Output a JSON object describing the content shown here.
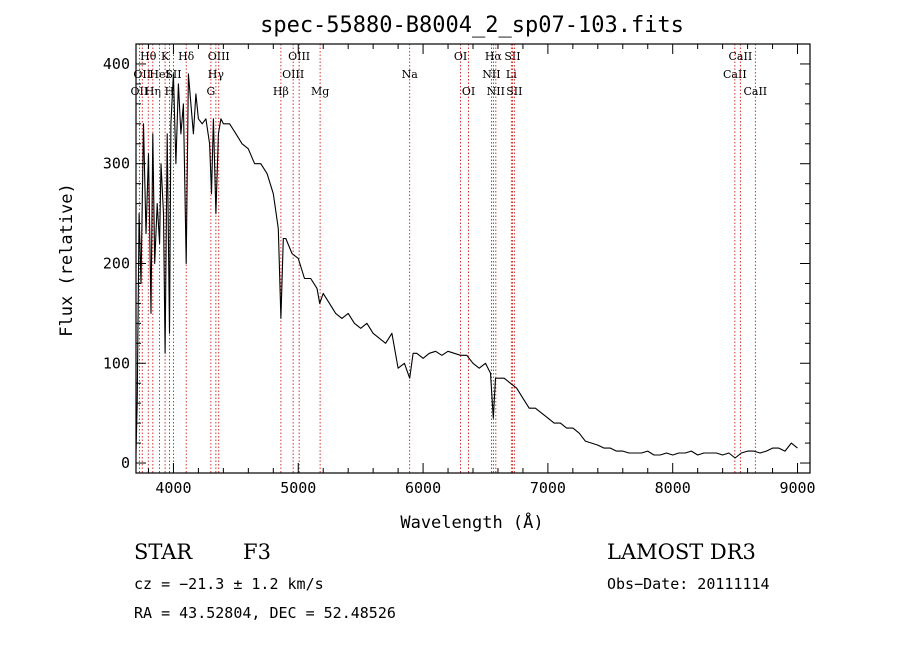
{
  "chart_data": {
    "type": "line",
    "title": "spec-55880-B8004_2_sp07-103.fits",
    "xlabel": "Wavelength (Å)",
    "ylabel": "Flux (relative)",
    "xlim": [
      3700,
      9100
    ],
    "ylim": [
      -10,
      420
    ],
    "xticks": [
      4000,
      5000,
      6000,
      7000,
      8000,
      9000
    ],
    "yticks": [
      0,
      100,
      200,
      300,
      400
    ],
    "series": [
      {
        "name": "spectrum",
        "x": [
          3700,
          3710,
          3725,
          3740,
          3760,
          3780,
          3800,
          3820,
          3835,
          3850,
          3870,
          3889,
          3900,
          3920,
          3933,
          3950,
          3968,
          3980,
          4000,
          4020,
          4040,
          4060,
          4080,
          4102,
          4120,
          4140,
          4160,
          4180,
          4200,
          4230,
          4260,
          4290,
          4305,
          4320,
          4340,
          4360,
          4380,
          4400,
          4450,
          4500,
          4550,
          4600,
          4650,
          4700,
          4750,
          4800,
          4840,
          4861,
          4880,
          4900,
          4950,
          5000,
          5050,
          5100,
          5150,
          5172,
          5200,
          5250,
          5300,
          5350,
          5400,
          5450,
          5500,
          5550,
          5600,
          5650,
          5700,
          5750,
          5800,
          5850,
          5893,
          5920,
          5950,
          6000,
          6050,
          6100,
          6150,
          6200,
          6250,
          6300,
          6350,
          6400,
          6450,
          6500,
          6540,
          6563,
          6580,
          6600,
          6650,
          6700,
          6750,
          6800,
          6850,
          6900,
          6950,
          7000,
          7050,
          7100,
          7150,
          7200,
          7250,
          7300,
          7350,
          7400,
          7450,
          7500,
          7550,
          7600,
          7650,
          7700,
          7750,
          7800,
          7850,
          7900,
          7950,
          8000,
          8050,
          8100,
          8150,
          8200,
          8250,
          8300,
          8350,
          8400,
          8450,
          8500,
          8550,
          8600,
          8650,
          8700,
          8750,
          8800,
          8850,
          8900,
          8950,
          9000
        ],
        "y": [
          10,
          60,
          250,
          180,
          340,
          230,
          310,
          150,
          330,
          200,
          260,
          220,
          300,
          250,
          110,
          330,
          130,
          340,
          390,
          300,
          380,
          330,
          360,
          200,
          390,
          360,
          330,
          370,
          345,
          340,
          345,
          320,
          270,
          345,
          250,
          330,
          345,
          340,
          340,
          330,
          320,
          315,
          300,
          300,
          290,
          270,
          235,
          145,
          225,
          225,
          210,
          205,
          185,
          185,
          175,
          160,
          170,
          160,
          150,
          145,
          150,
          140,
          135,
          140,
          130,
          125,
          120,
          130,
          95,
          100,
          85,
          110,
          110,
          105,
          110,
          112,
          108,
          112,
          110,
          108,
          108,
          100,
          95,
          100,
          90,
          45,
          85,
          85,
          85,
          80,
          75,
          65,
          55,
          55,
          50,
          45,
          40,
          40,
          35,
          35,
          30,
          22,
          20,
          18,
          15,
          15,
          12,
          12,
          10,
          10,
          10,
          12,
          8,
          8,
          10,
          8,
          10,
          10,
          12,
          8,
          10,
          10,
          10,
          8,
          10,
          5,
          10,
          12,
          12,
          10,
          12,
          15,
          15,
          12,
          20,
          15
        ]
      }
    ],
    "lines": [
      {
        "wl": 3727,
        "label": "OII",
        "row": 2
      },
      {
        "wl": 3750,
        "label": "OII",
        "row": 1
      },
      {
        "wl": 3798,
        "label": "Hθ",
        "row": 0
      },
      {
        "wl": 3835,
        "label": "Hη",
        "row": 2
      },
      {
        "wl": 3889,
        "label": "HeI",
        "row": 1
      },
      {
        "wl": 3933,
        "label": "K",
        "row": 0
      },
      {
        "wl": 3968,
        "label": "H",
        "row": 2
      },
      {
        "wl": 4000,
        "label": "SII",
        "row": 1
      },
      {
        "wl": 4102,
        "label": "Hδ",
        "row": 0
      },
      {
        "wl": 4300,
        "label": "G",
        "row": 2
      },
      {
        "wl": 4340,
        "label": "Hγ",
        "row": 1
      },
      {
        "wl": 4363,
        "label": "OIII",
        "row": 0
      },
      {
        "wl": 4861,
        "label": "Hβ",
        "row": 2
      },
      {
        "wl": 4959,
        "label": "OIII",
        "row": 1
      },
      {
        "wl": 5007,
        "label": "OIII",
        "row": 0
      },
      {
        "wl": 5175,
        "label": "Mg",
        "row": 2
      },
      {
        "wl": 5893,
        "label": "Na",
        "row": 1
      },
      {
        "wl": 6300,
        "label": "OI",
        "row": 0
      },
      {
        "wl": 6364,
        "label": "OI",
        "row": 2
      },
      {
        "wl": 6548,
        "label": "NII",
        "row": 1
      },
      {
        "wl": 6563,
        "label": "Hα",
        "row": 0
      },
      {
        "wl": 6583,
        "label": "NII",
        "row": 2
      },
      {
        "wl": 6707,
        "label": "Li",
        "row": 1
      },
      {
        "wl": 6716,
        "label": "SII",
        "row": 0
      },
      {
        "wl": 6731,
        "label": "SII",
        "row": 2
      },
      {
        "wl": 8498,
        "label": "CaII",
        "row": 1
      },
      {
        "wl": 8542,
        "label": "CaII",
        "row": 0
      },
      {
        "wl": 8662,
        "label": "CaII",
        "row": 2
      }
    ]
  },
  "info": {
    "object_class": "STAR",
    "subclass": "F3",
    "survey": "LAMOST DR3",
    "redshift": "cz = −21.3 ± 1.2 km/s",
    "obs_date": "Obs−Date: 20111114",
    "coordinates": "RA =  43.52804, DEC =  52.48526"
  },
  "colors": {
    "spectrum": "#000000",
    "line_marker": "#cc0000",
    "background": "#ffffff"
  }
}
